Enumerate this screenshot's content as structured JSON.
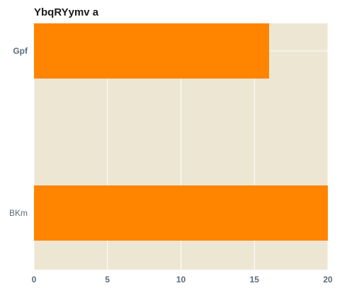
{
  "chart_data": {
    "type": "bar",
    "orientation": "horizontal",
    "title": "YbqRYymv a",
    "xlabel": "",
    "ylabel": "",
    "categories": [
      "Gpf",
      "BKm"
    ],
    "values": [
      16,
      20
    ],
    "xlim": [
      0,
      20
    ],
    "x_ticks": [
      "0",
      "5",
      "10",
      "15",
      "20"
    ],
    "grid": true,
    "colors": {
      "bar": "#ff8400",
      "plot_background": "#ede6d3",
      "grid": "#ffffff"
    }
  }
}
